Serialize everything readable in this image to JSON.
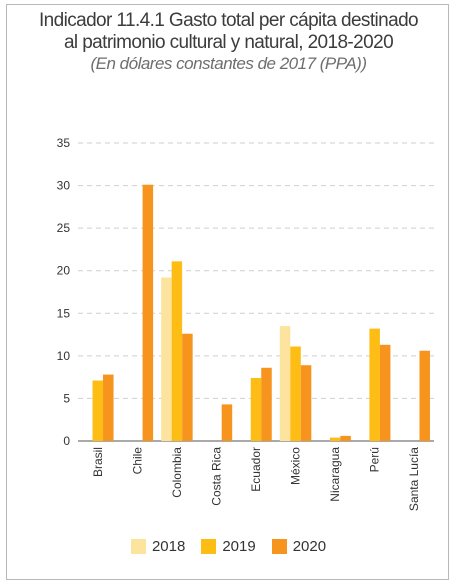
{
  "chart_data": {
    "type": "bar",
    "title_line1": "Indicador 11.4.1 Gasto total per cápita destinado",
    "title_line2": "al patrimonio cultural y natural, 2018-2020",
    "subtitle": "(En dólares constantes de 2017 (PPA))",
    "categories": [
      "Brasil",
      "Chile",
      "Colombia",
      "Costa Rica",
      "Ecuador",
      "México",
      "Nicaragua",
      "Perú",
      "Santa Lucía"
    ],
    "series": [
      {
        "name": "2018",
        "color": "#fde49e",
        "values": [
          null,
          null,
          19.2,
          null,
          null,
          13.5,
          null,
          null,
          null
        ]
      },
      {
        "name": "2019",
        "color": "#fdbd14",
        "values": [
          7.1,
          null,
          21.1,
          null,
          7.4,
          11.1,
          0.4,
          13.2,
          null
        ]
      },
      {
        "name": "2020",
        "color": "#f7941d",
        "values": [
          7.8,
          30.1,
          12.6,
          4.3,
          8.6,
          8.9,
          0.6,
          11.3,
          10.6
        ]
      }
    ],
    "ylim": [
      0,
      35
    ],
    "yticks": [
      0,
      5,
      10,
      15,
      20,
      25,
      30,
      35
    ],
    "grid": true,
    "legend_position": "bottom"
  }
}
